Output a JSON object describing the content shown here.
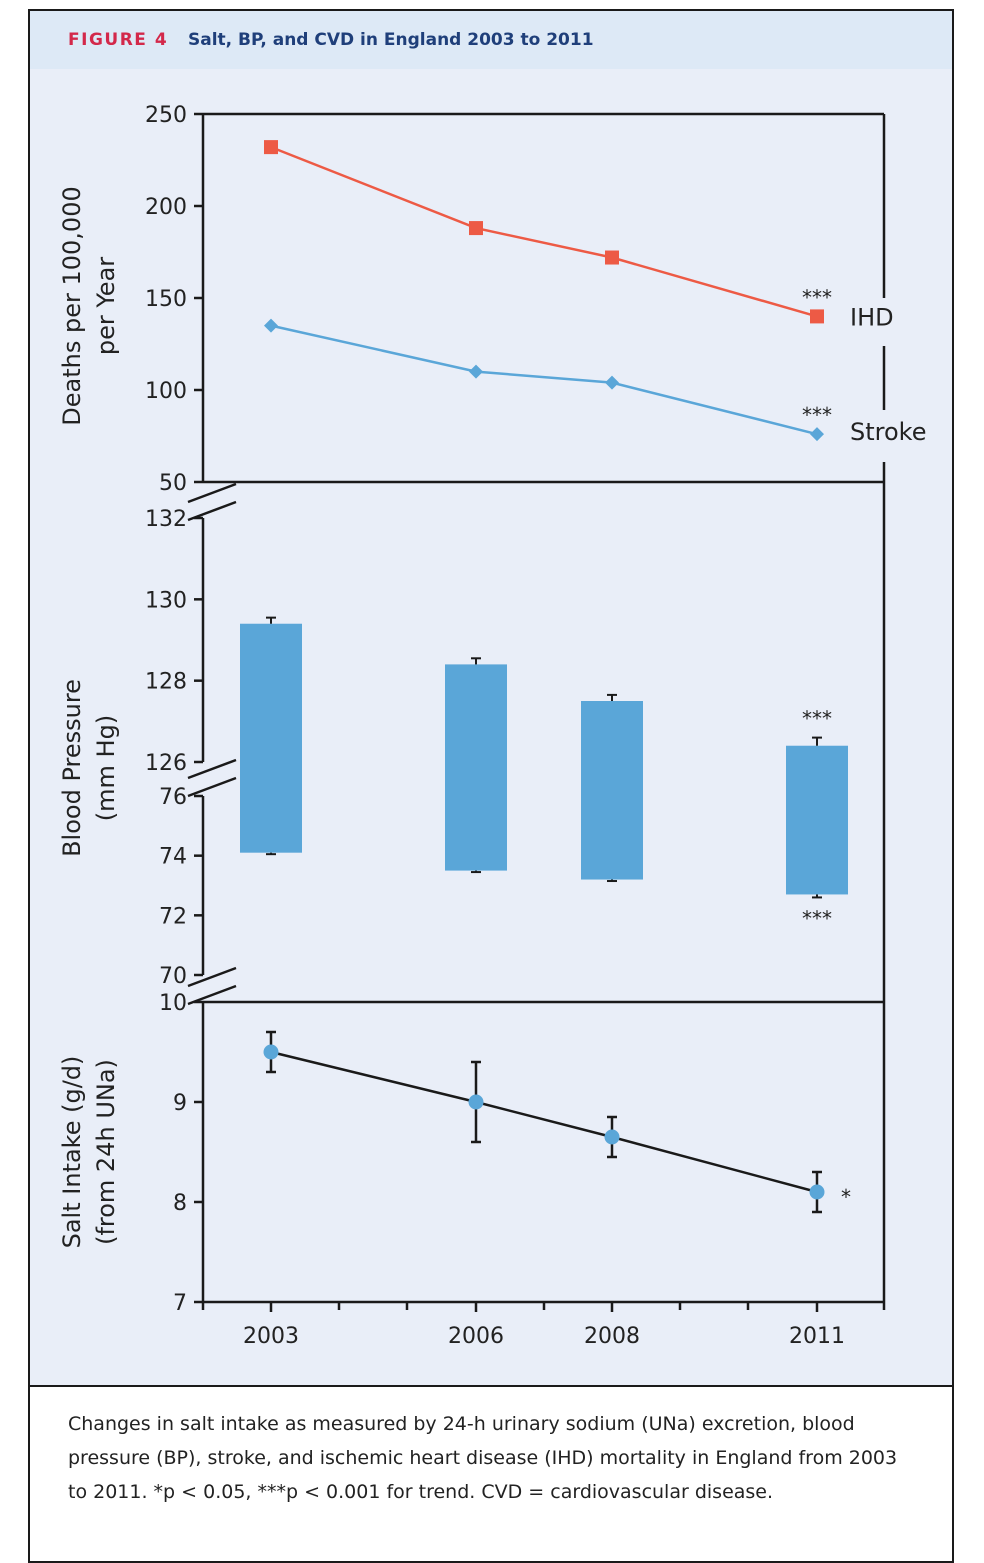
{
  "figure": {
    "label": "FIGURE 4",
    "title": "Salt, BP, and CVD in England 2003 to 2011"
  },
  "caption": "Changes in salt intake as measured by 24-h urinary sodium (UNa) excretion, blood pressure (BP), stroke, and ischemic heart disease (IHD) mortality in England from 2003 to 2011. *p < 0.05, ***p < 0.001 for trend. CVD = cardiovascular disease.",
  "colors": {
    "ihd": "#ed5a45",
    "stroke": "#5aa6d8",
    "bar": "#5aa6d8",
    "salt_line": "#1a1a1a",
    "salt_marker": "#5aa6d8"
  },
  "chart_data": [
    {
      "type": "line",
      "panel": "mortality",
      "ylabel": [
        "Deaths per 100,000",
        "per Year"
      ],
      "ylim": [
        50,
        250
      ],
      "yticks": [
        50,
        100,
        150,
        200,
        250
      ],
      "x": [
        "2003",
        "2006",
        "2008",
        "2011"
      ],
      "series": [
        {
          "name": "IHD",
          "values": [
            232,
            188,
            172,
            140
          ],
          "marker": "square",
          "annotation": "***"
        },
        {
          "name": "Stroke",
          "values": [
            135,
            110,
            104,
            76
          ],
          "marker": "diamond",
          "annotation": "***"
        }
      ]
    },
    {
      "type": "bar",
      "panel": "blood_pressure",
      "ylabel": [
        "Blood Pressure",
        "(mm Hg)"
      ],
      "ylim_upper": [
        126,
        132
      ],
      "yticks_upper": [
        126,
        128,
        130,
        132
      ],
      "ylim_lower": [
        70,
        76
      ],
      "yticks_lower": [
        70,
        72,
        74,
        76
      ],
      "x": [
        "2003",
        "2006",
        "2008",
        "2011"
      ],
      "systolic": [
        129.4,
        128.4,
        127.5,
        126.4
      ],
      "systolic_err": [
        0.15,
        0.15,
        0.15,
        0.2
      ],
      "diastolic": [
        74.1,
        73.5,
        73.2,
        72.7
      ],
      "diastolic_err": [
        0.05,
        0.05,
        0.05,
        0.1
      ],
      "annotations": {
        "systolic_2011": "***",
        "diastolic_2011": "***"
      }
    },
    {
      "type": "scatter",
      "panel": "salt",
      "ylabel": [
        "Salt Intake (g/d)",
        "(from 24h UNa)"
      ],
      "ylim": [
        7,
        10
      ],
      "yticks": [
        7,
        8,
        9,
        10
      ],
      "x": [
        "2003",
        "2006",
        "2008",
        "2011"
      ],
      "values": [
        9.5,
        9.0,
        8.65,
        8.1
      ],
      "errors": [
        0.2,
        0.4,
        0.2,
        0.2
      ],
      "annotation": "*"
    }
  ]
}
